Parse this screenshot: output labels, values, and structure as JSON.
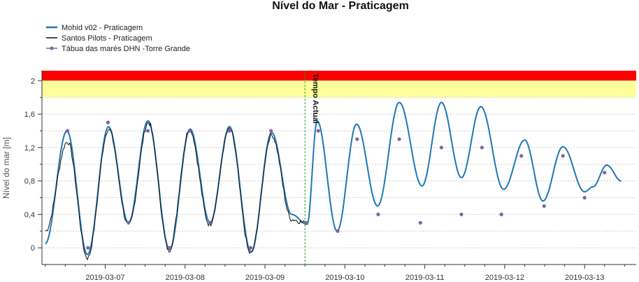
{
  "chart_data": {
    "type": "line",
    "title": "Nível do Mar - Praticagem",
    "ylabel": "Nível do mar [m]",
    "xlabel": "",
    "ylim": [
      -0.2,
      2.12
    ],
    "xlim": [
      "2019-03-06T05:00",
      "2019-03-13T15:30"
    ],
    "grid": true,
    "legend_position": "top-left",
    "y_ticks": [
      "0",
      "0,4",
      "0,8",
      "1,2",
      "1,6",
      "2"
    ],
    "x_ticks": [
      "2019-03-07",
      "2019-03-08",
      "2019-03-09",
      "2019-03-10",
      "2019-03-11",
      "2019-03-12",
      "2019-03-13"
    ],
    "current_time_label": "Tempo Actual",
    "current_time": "2019-03-09T12:00",
    "alert_bands": [
      {
        "from": 2.0,
        "to": 2.12,
        "color": "#ff0000"
      },
      {
        "from": 1.8,
        "to": 2.0,
        "color": "#ffff99"
      }
    ],
    "series": [
      {
        "name": "Mohid v02 - Praticagem",
        "color": "#1f77b4",
        "style": "line",
        "extrema": [
          [
            "2019-03-06T06:00",
            0.05
          ],
          [
            "2019-03-06T12:30",
            1.4
          ],
          [
            "2019-03-06T18:40",
            -0.08
          ],
          [
            "2019-03-07T01:00",
            1.45
          ],
          [
            "2019-03-07T07:00",
            0.3
          ],
          [
            "2019-03-07T12:50",
            1.52
          ],
          [
            "2019-03-07T19:20",
            -0.02
          ],
          [
            "2019-03-08T01:30",
            1.42
          ],
          [
            "2019-03-08T07:30",
            0.3
          ],
          [
            "2019-03-08T13:20",
            1.45
          ],
          [
            "2019-03-08T19:50",
            -0.05
          ],
          [
            "2019-03-09T02:00",
            1.38
          ],
          [
            "2019-03-09T08:00",
            0.4
          ],
          [
            "2019-03-09T12:40",
            0.28
          ],
          [
            "2019-03-09T15:40",
            1.52
          ],
          [
            "2019-03-09T21:40",
            0.2
          ],
          [
            "2019-03-10T03:30",
            1.48
          ],
          [
            "2019-03-10T09:50",
            0.5
          ],
          [
            "2019-03-10T16:20",
            1.74
          ],
          [
            "2019-03-10T23:10",
            0.74
          ],
          [
            "2019-03-11T05:00",
            1.74
          ],
          [
            "2019-03-11T11:00",
            0.84
          ],
          [
            "2019-03-11T16:50",
            1.69
          ],
          [
            "2019-03-11T23:40",
            0.7
          ],
          [
            "2019-03-12T06:00",
            1.29
          ],
          [
            "2019-03-12T11:30",
            0.56
          ],
          [
            "2019-03-12T17:30",
            1.21
          ],
          [
            "2019-03-13T00:00",
            0.67
          ],
          [
            "2019-03-13T02:30",
            0.73
          ],
          [
            "2019-03-13T06:40",
            0.99
          ],
          [
            "2019-03-13T11:00",
            0.8
          ]
        ]
      },
      {
        "name": "Santos Pilots - Praticagem",
        "color": "#111111",
        "style": "line",
        "extrema": [
          [
            "2019-03-06T06:00",
            0.2
          ],
          [
            "2019-03-06T12:40",
            1.27
          ],
          [
            "2019-03-06T18:40",
            -0.12
          ],
          [
            "2019-03-07T01:00",
            1.42
          ],
          [
            "2019-03-07T07:00",
            0.27
          ],
          [
            "2019-03-07T13:00",
            1.5
          ],
          [
            "2019-03-07T19:10",
            -0.03
          ],
          [
            "2019-03-08T01:20",
            1.42
          ],
          [
            "2019-03-08T07:20",
            0.28
          ],
          [
            "2019-03-08T13:20",
            1.42
          ],
          [
            "2019-03-08T19:40",
            -0.07
          ],
          [
            "2019-03-09T02:00",
            1.35
          ],
          [
            "2019-03-09T08:00",
            0.34
          ],
          [
            "2019-03-09T12:00",
            0.3
          ]
        ]
      },
      {
        "name": "Tábua das marés DHN -Torre Grande",
        "color": "#8064a2",
        "style": "points",
        "points": [
          [
            "2019-03-06T12:40",
            1.4
          ],
          [
            "2019-03-06T18:50",
            0.0
          ],
          [
            "2019-03-07T00:50",
            1.5
          ],
          [
            "2019-03-07T07:00",
            0.3
          ],
          [
            "2019-03-07T12:50",
            1.4
          ],
          [
            "2019-03-07T19:20",
            0.0
          ],
          [
            "2019-03-08T01:20",
            1.4
          ],
          [
            "2019-03-08T07:30",
            0.3
          ],
          [
            "2019-03-08T13:20",
            1.4
          ],
          [
            "2019-03-08T19:40",
            0.0
          ],
          [
            "2019-03-09T01:50",
            1.4
          ],
          [
            "2019-03-09T12:30",
            0.3
          ],
          [
            "2019-03-09T16:00",
            1.4
          ],
          [
            "2019-03-09T21:50",
            0.2
          ],
          [
            "2019-03-10T03:40",
            1.3
          ],
          [
            "2019-03-10T10:00",
            0.4
          ],
          [
            "2019-03-10T16:20",
            1.3
          ],
          [
            "2019-03-10T22:40",
            0.3
          ],
          [
            "2019-03-11T05:00",
            1.2
          ],
          [
            "2019-03-11T11:00",
            0.4
          ],
          [
            "2019-03-11T17:10",
            1.2
          ],
          [
            "2019-03-11T23:00",
            0.4
          ],
          [
            "2019-03-12T05:00",
            1.1
          ],
          [
            "2019-03-12T11:50",
            0.5
          ],
          [
            "2019-03-12T17:30",
            1.1
          ],
          [
            "2019-03-13T00:00",
            0.6
          ],
          [
            "2019-03-13T06:00",
            0.9
          ]
        ]
      }
    ]
  }
}
